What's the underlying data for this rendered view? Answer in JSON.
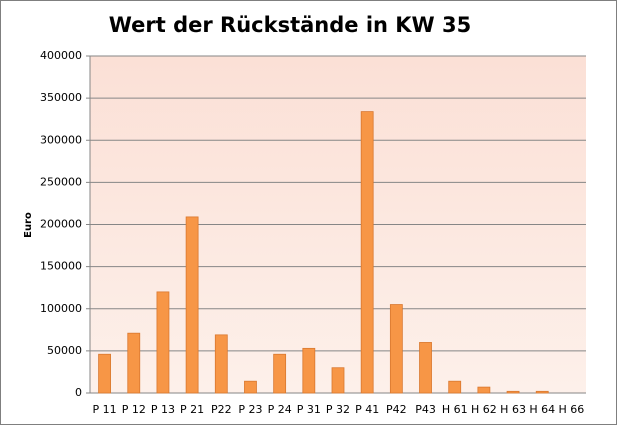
{
  "chart_data": {
    "type": "bar",
    "title": "Wert der Rückstände in KW 35",
    "y_label": "Euro",
    "categories": [
      "P 11",
      "P 12",
      "P 13",
      "P 21",
      "P22",
      "P 23",
      "P 24",
      "P 31",
      "P 32",
      "P 41",
      "P42",
      "P43",
      "H 61",
      "H 62",
      "H 63",
      "H 64",
      "H 66"
    ],
    "values": [
      46000,
      71000,
      120000,
      209000,
      69000,
      14000,
      46000,
      53000,
      30000,
      334000,
      105000,
      60000,
      14000,
      7000,
      2000,
      2000,
      0
    ],
    "color": "#f79646",
    "ylim": [
      0,
      400000
    ],
    "yticks": [
      0,
      50000,
      100000,
      150000,
      200000,
      250000,
      300000,
      350000,
      400000
    ],
    "grid": true
  }
}
